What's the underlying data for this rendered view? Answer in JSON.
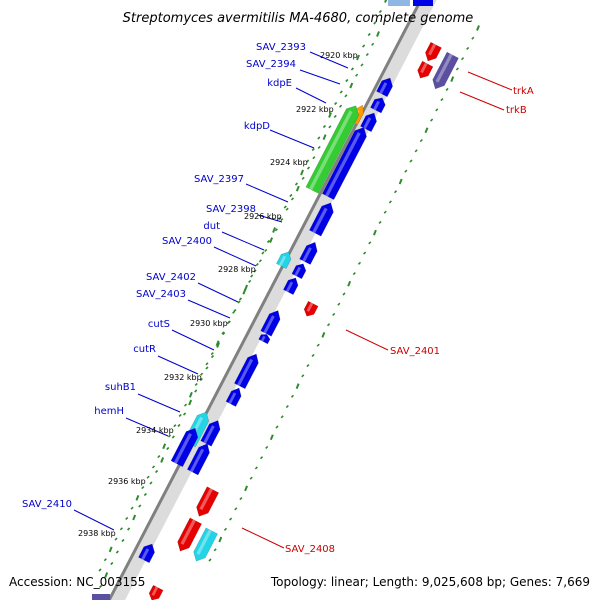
{
  "title": "Streptomyces avermitilis MA-4680, complete genome",
  "footer": {
    "accession": "Accession: NC_003155",
    "summary": "Topology: linear; Length: 9,025,608 bp; Genes: 7,669"
  },
  "colors": {
    "backbone": "#808080",
    "tick": "#2e8b2e",
    "forward_label": "#0000cc",
    "reverse_label": "#cc0000",
    "gene_blue": "#0000e6",
    "gene_red": "#e60000",
    "gene_cyan": "#22d4e6",
    "gene_green": "#33cc33",
    "gene_orange": "#ff9900",
    "gene_purple": "#5a4fa0"
  },
  "ticks": [
    {
      "label": "2920 kbp"
    },
    {
      "label": "2922 kbp"
    },
    {
      "label": "2924 kbp"
    },
    {
      "label": "2926 kbp"
    },
    {
      "label": "2928 kbp"
    },
    {
      "label": "2930 kbp"
    },
    {
      "label": "2932 kbp"
    },
    {
      "label": "2934 kbp"
    },
    {
      "label": "2936 kbp"
    },
    {
      "label": "2938 kbp"
    }
  ],
  "forward_labels": [
    {
      "name": "SAV_2393"
    },
    {
      "name": "SAV_2394"
    },
    {
      "name": "kdpE"
    },
    {
      "name": "kdpD"
    },
    {
      "name": "SAV_2397"
    },
    {
      "name": "SAV_2398"
    },
    {
      "name": "dut"
    },
    {
      "name": "SAV_2400"
    },
    {
      "name": "SAV_2402"
    },
    {
      "name": "SAV_2403"
    },
    {
      "name": "cutS"
    },
    {
      "name": "cutR"
    },
    {
      "name": "suhB1"
    },
    {
      "name": "hemH"
    },
    {
      "name": "SAV_2410"
    }
  ],
  "reverse_labels": [
    {
      "name": "trkA"
    },
    {
      "name": "trkB"
    },
    {
      "name": "SAV_2401"
    },
    {
      "name": "SAV_2408"
    }
  ]
}
